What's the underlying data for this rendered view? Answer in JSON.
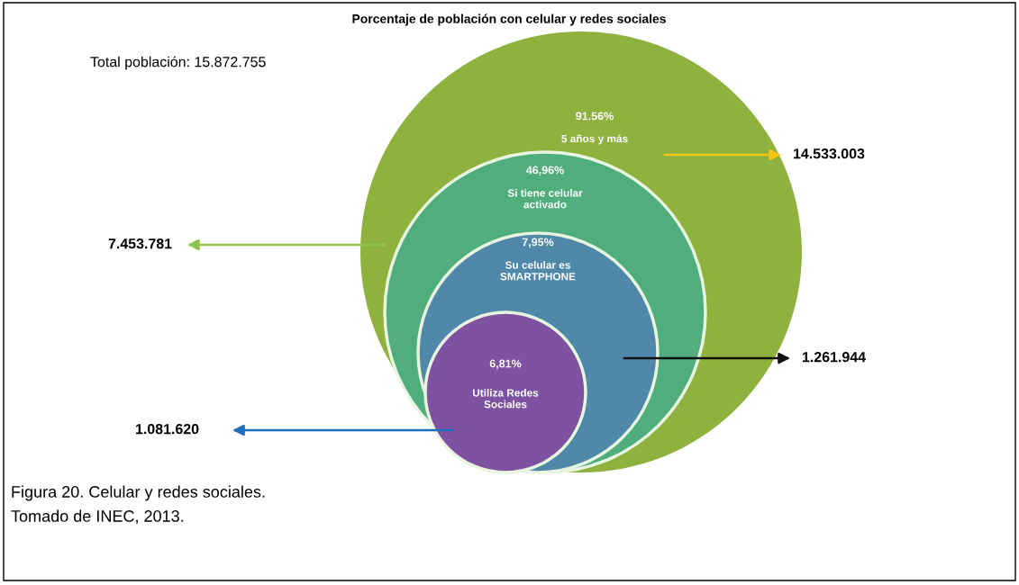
{
  "chart_data": {
    "type": "other",
    "title": "Porcentaje de población con celular y redes sociales",
    "categories": [
      "5 años y más",
      "Si tiene celular\nactivado",
      "Su celular es\nSMARTPHONE",
      "Utiliza Redes\nSociales"
    ],
    "values": [
      91.56,
      46.96,
      7.95,
      6.81
    ],
    "value_labels": [
      "91.56%",
      "46,96%",
      "7,95%",
      "6,81%"
    ],
    "colors": [
      "#8fb23e",
      "#4fae7c",
      "#4f88a8",
      "#7e52a0"
    ],
    "annotations": [
      "Total población: 15.872.755",
      "14.533.003",
      "7.453.781",
      "1.261.944",
      "1.081.620",
      "Figura 20. Celular y redes sociales.",
      "Tomado de INEC, 2013."
    ]
  }
}
